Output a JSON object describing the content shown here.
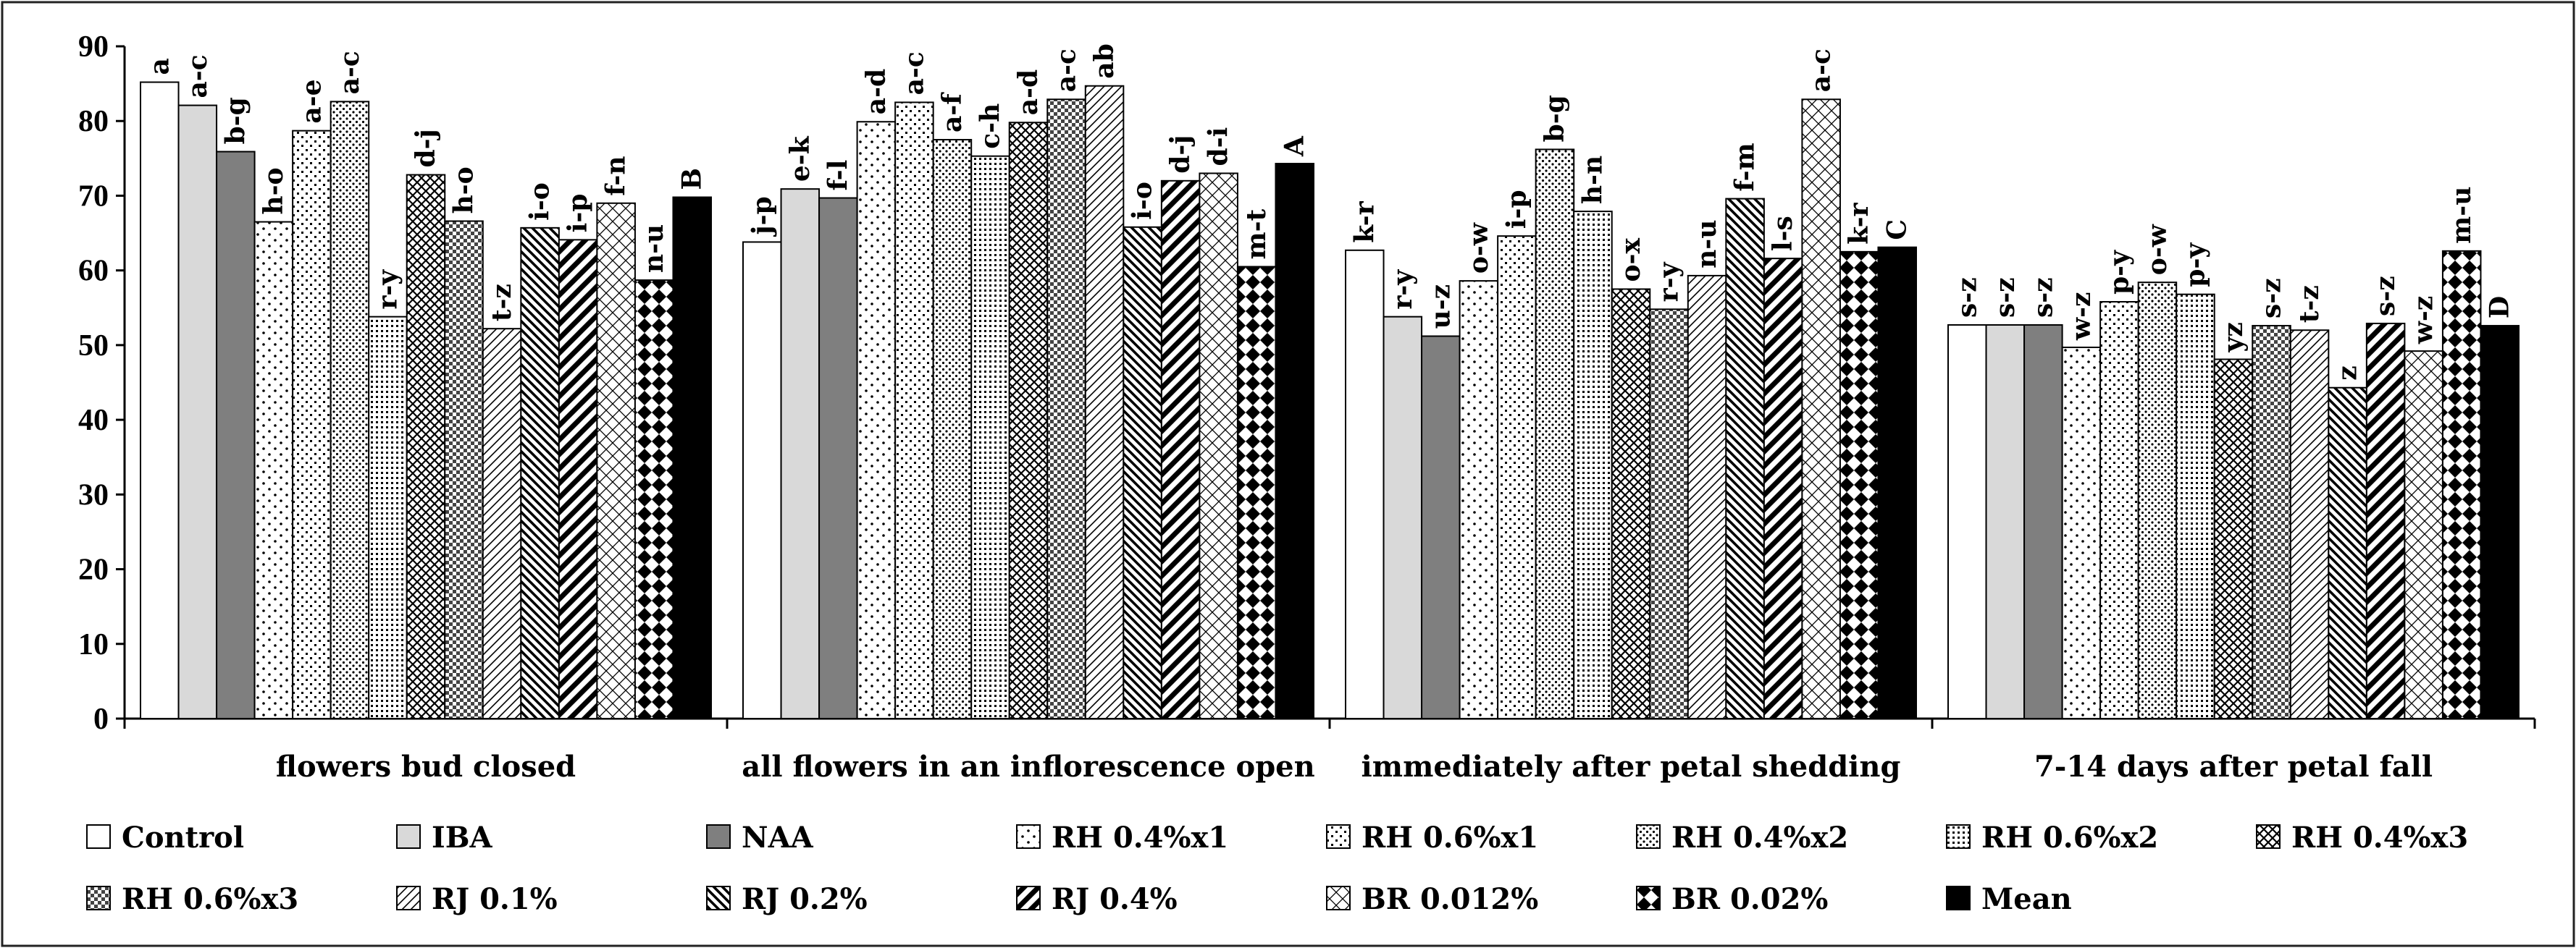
{
  "chart_data": {
    "type": "bar",
    "title": "",
    "xlabel": "",
    "ylabel": "",
    "ylim": [
      0,
      90
    ],
    "yticks": [
      0,
      10,
      20,
      30,
      40,
      50,
      60,
      70,
      80,
      90
    ],
    "categories": [
      "flowers bud closed",
      "all flowers in an inflorescence open",
      "immediately after petal shedding",
      "7-14 days after petal fall"
    ],
    "series": [
      {
        "name": "Control",
        "pattern": "white",
        "values": [
          85.2,
          63.8,
          62.7,
          52.7
        ],
        "labels": [
          "a",
          "j-p",
          "k-r",
          "s-z"
        ]
      },
      {
        "name": "IBA",
        "pattern": "lightgray",
        "values": [
          82.1,
          70.9,
          53.8,
          52.7
        ],
        "labels": [
          "a-c",
          "e-k",
          "r-y",
          "s-z"
        ]
      },
      {
        "name": "NAA",
        "pattern": "darkgray",
        "values": [
          75.9,
          69.7,
          51.2,
          52.7
        ],
        "labels": [
          "b-g",
          "f-l",
          "u-z",
          "s-z"
        ]
      },
      {
        "name": "RH 0.4%x1",
        "pattern": "dots1",
        "values": [
          66.5,
          79.9,
          58.6,
          49.7
        ],
        "labels": [
          "h-o",
          "a-d",
          "o-w",
          "w-z"
        ]
      },
      {
        "name": "RH 0.6%x1",
        "pattern": "dots2",
        "values": [
          78.7,
          82.5,
          64.6,
          55.8
        ],
        "labels": [
          "a-e",
          "a-c",
          "i-p",
          "p-y"
        ]
      },
      {
        "name": "RH 0.4%x2",
        "pattern": "dots3",
        "values": [
          82.6,
          77.5,
          76.2,
          58.4
        ],
        "labels": [
          "a-c",
          "a-f",
          "b-g",
          "o-w"
        ]
      },
      {
        "name": "RH 0.6%x2",
        "pattern": "dense",
        "values": [
          53.8,
          75.3,
          67.9,
          56.8
        ],
        "labels": [
          "r-y",
          "c-h",
          "h-n",
          "p-y"
        ]
      },
      {
        "name": "RH 0.4%x3",
        "pattern": "cross",
        "values": [
          72.8,
          79.8,
          57.5,
          48.1
        ],
        "labels": [
          "d-j",
          "a-d",
          "o-x",
          "yz"
        ]
      },
      {
        "name": "RH 0.6%x3",
        "pattern": "checker",
        "values": [
          66.6,
          82.9,
          54.8,
          52.6
        ],
        "labels": [
          "h-o",
          "a-c",
          "r-y",
          "s-z"
        ]
      },
      {
        "name": "RJ 0.1%",
        "pattern": "diag",
        "values": [
          52.2,
          84.7,
          59.3,
          52.0
        ],
        "labels": [
          "t-z",
          "ab",
          "n-u",
          "t-z"
        ]
      },
      {
        "name": "RJ 0.2%",
        "pattern": "antidiag",
        "values": [
          65.7,
          65.8,
          69.6,
          44.3
        ],
        "labels": [
          "i-o",
          "i-o",
          "f-m",
          "z"
        ]
      },
      {
        "name": "RJ 0.4%",
        "pattern": "thick",
        "values": [
          64.1,
          72.0,
          61.6,
          52.9
        ],
        "labels": [
          "i-p",
          "d-j",
          "l-s",
          "s-z"
        ]
      },
      {
        "name": "BR 0.012%",
        "pattern": "trellis",
        "values": [
          69.0,
          73.0,
          82.9,
          49.2
        ],
        "labels": [
          "f-n",
          "d-i",
          "a-c",
          "w-z"
        ]
      },
      {
        "name": "BR 0.02%",
        "pattern": "diamond",
        "values": [
          58.7,
          60.5,
          62.5,
          62.6
        ],
        "labels": [
          "n-u",
          "m-t",
          "k-r",
          "m-u"
        ]
      },
      {
        "name": "Mean",
        "pattern": "black",
        "values": [
          69.8,
          74.3,
          63.1,
          52.6
        ],
        "labels": [
          "B",
          "A",
          "C",
          "D"
        ]
      }
    ],
    "legend": {
      "rows": [
        [
          "Control",
          "IBA",
          "NAA",
          "RH 0.4%x1",
          "RH 0.6%x1",
          "RH 0.4%x2",
          "RH 0.6%x2",
          "RH 0.4%x3"
        ],
        [
          "RH 0.6%x3",
          "RJ 0.1%",
          "RJ 0.2%",
          "RJ 0.4%",
          "BR 0.012%",
          "BR 0.02%",
          "Mean"
        ]
      ],
      "placement": "bottom"
    },
    "grid": false
  }
}
